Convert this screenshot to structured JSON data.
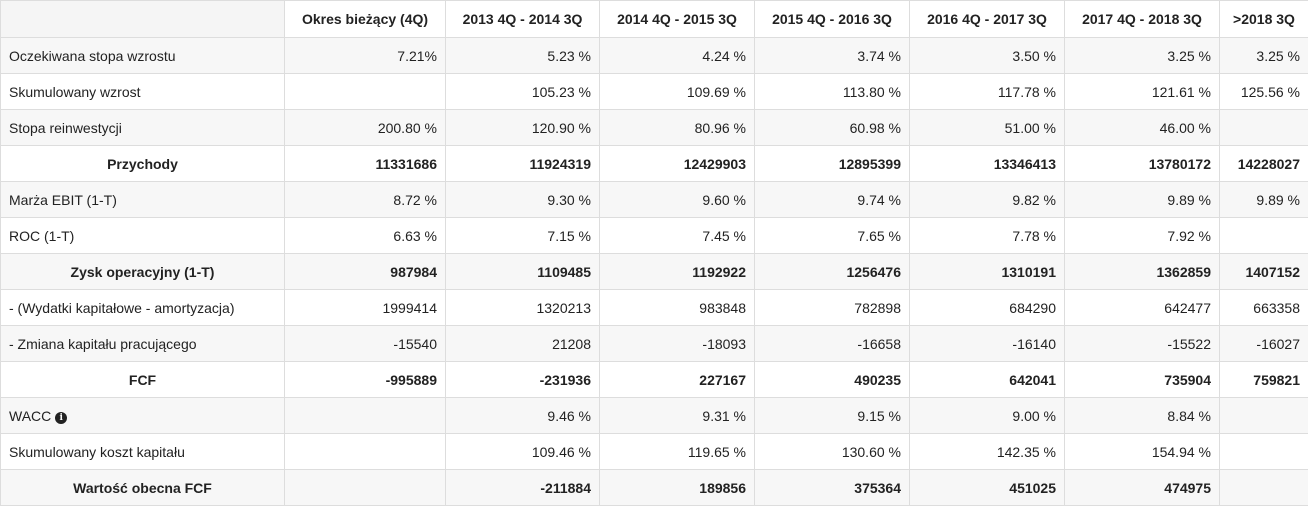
{
  "table": {
    "columns": [
      "",
      "Okres bieżący (4Q)",
      "2013 4Q - 2014 3Q",
      "2014 4Q - 2015 3Q",
      "2015 4Q - 2016 3Q",
      "2016 4Q - 2017 3Q",
      "2017 4Q - 2018 3Q",
      ">2018 3Q"
    ],
    "rows": [
      {
        "label": "Oczekiwana stopa wzrostu",
        "bold": false,
        "cells": [
          "7.21%",
          "5.23 %",
          "4.24 %",
          "3.74 %",
          "3.50 %",
          "3.25 %",
          "3.25 %"
        ]
      },
      {
        "label": "Skumulowany wzrost",
        "bold": false,
        "cells": [
          "",
          "105.23 %",
          "109.69 %",
          "113.80 %",
          "117.78 %",
          "121.61 %",
          "125.56 %"
        ]
      },
      {
        "label": "Stopa reinwestycji",
        "bold": false,
        "cells": [
          "200.80 %",
          "120.90 %",
          "80.96 %",
          "60.98 %",
          "51.00 %",
          "46.00 %",
          ""
        ]
      },
      {
        "label": "Przychody",
        "bold": true,
        "cells": [
          "11331686",
          "11924319",
          "12429903",
          "12895399",
          "13346413",
          "13780172",
          "14228027"
        ]
      },
      {
        "label": "Marża EBIT (1-T)",
        "bold": false,
        "cells": [
          "8.72 %",
          "9.30 %",
          "9.60 %",
          "9.74 %",
          "9.82 %",
          "9.89 %",
          "9.89 %"
        ]
      },
      {
        "label": "ROC (1-T)",
        "bold": false,
        "cells": [
          "6.63 %",
          "7.15 %",
          "7.45 %",
          "7.65 %",
          "7.78 %",
          "7.92 %",
          ""
        ]
      },
      {
        "label": "Zysk operacyjny (1-T)",
        "bold": true,
        "cells": [
          "987984",
          "1109485",
          "1192922",
          "1256476",
          "1310191",
          "1362859",
          "1407152"
        ]
      },
      {
        "label": "- (Wydatki kapitałowe - amortyzacja)",
        "bold": false,
        "cells": [
          "1999414",
          "1320213",
          "983848",
          "782898",
          "684290",
          "642477",
          "663358"
        ]
      },
      {
        "label": "- Zmiana kapitału pracującego",
        "bold": false,
        "cells": [
          "-15540",
          "21208",
          "-18093",
          "-16658",
          "-16140",
          "-15522",
          "-16027"
        ]
      },
      {
        "label": "FCF",
        "bold": true,
        "cells": [
          "-995889",
          "-231936",
          "227167",
          "490235",
          "642041",
          "735904",
          "759821"
        ]
      },
      {
        "label": "WACC",
        "bold": false,
        "icon": "info-icon",
        "cells": [
          "",
          "9.46 %",
          "9.31 %",
          "9.15 %",
          "9.00 %",
          "8.84 %",
          ""
        ]
      },
      {
        "label": "Skumulowany koszt kapitału",
        "bold": false,
        "cells": [
          "",
          "109.46 %",
          "119.65 %",
          "130.60 %",
          "142.35 %",
          "154.94 %",
          ""
        ]
      },
      {
        "label": "Wartość obecna FCF",
        "bold": true,
        "cells": [
          "",
          "-211884",
          "189856",
          "375364",
          "451025",
          "474975",
          ""
        ]
      }
    ]
  }
}
